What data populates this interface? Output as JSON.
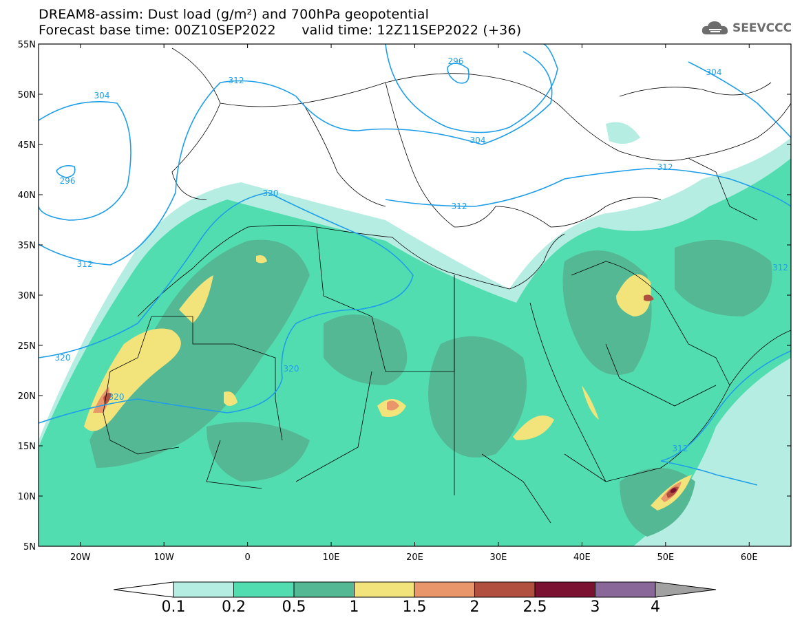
{
  "title": {
    "line1": "DREAM8-assim: Dust load (g/m²) and 700hPa geopotential",
    "line2": "Forecast base time: 00Z10SEP2022      valid time: 12Z11SEP2022 (+36)"
  },
  "logo": {
    "text": "SEEVCCC",
    "icon": "cloud-icon"
  },
  "axes": {
    "lat_labels": [
      "55N",
      "50N",
      "45N",
      "40N",
      "35N",
      "30N",
      "25N",
      "20N",
      "15N",
      "10N",
      "5N"
    ],
    "lon_labels": [
      "20W",
      "10W",
      "0",
      "10E",
      "20E",
      "30E",
      "40E",
      "50E",
      "60E"
    ],
    "lon_range": [
      -25,
      65
    ],
    "lat_range": [
      5,
      55
    ]
  },
  "contour_labels": [
    "304",
    "312",
    "296",
    "304",
    "296",
    "304",
    "312",
    "312",
    "320",
    "320",
    "312",
    "320",
    "320",
    "312",
    "312"
  ],
  "colorbar": {
    "ticks": [
      "0.1",
      "0.2",
      "0.5",
      "1",
      "1.5",
      "2",
      "2.5",
      "3",
      "4"
    ],
    "colors": [
      "#ffffff",
      "#b5ede3",
      "#52ddb0",
      "#55b894",
      "#f2e47b",
      "#e9966b",
      "#b1503f",
      "#7c1232",
      "#896799",
      "#a1a1a1"
    ]
  },
  "colors": {
    "land": "#ffffff",
    "border": "#000000",
    "contour": "#1f9ee8"
  }
}
